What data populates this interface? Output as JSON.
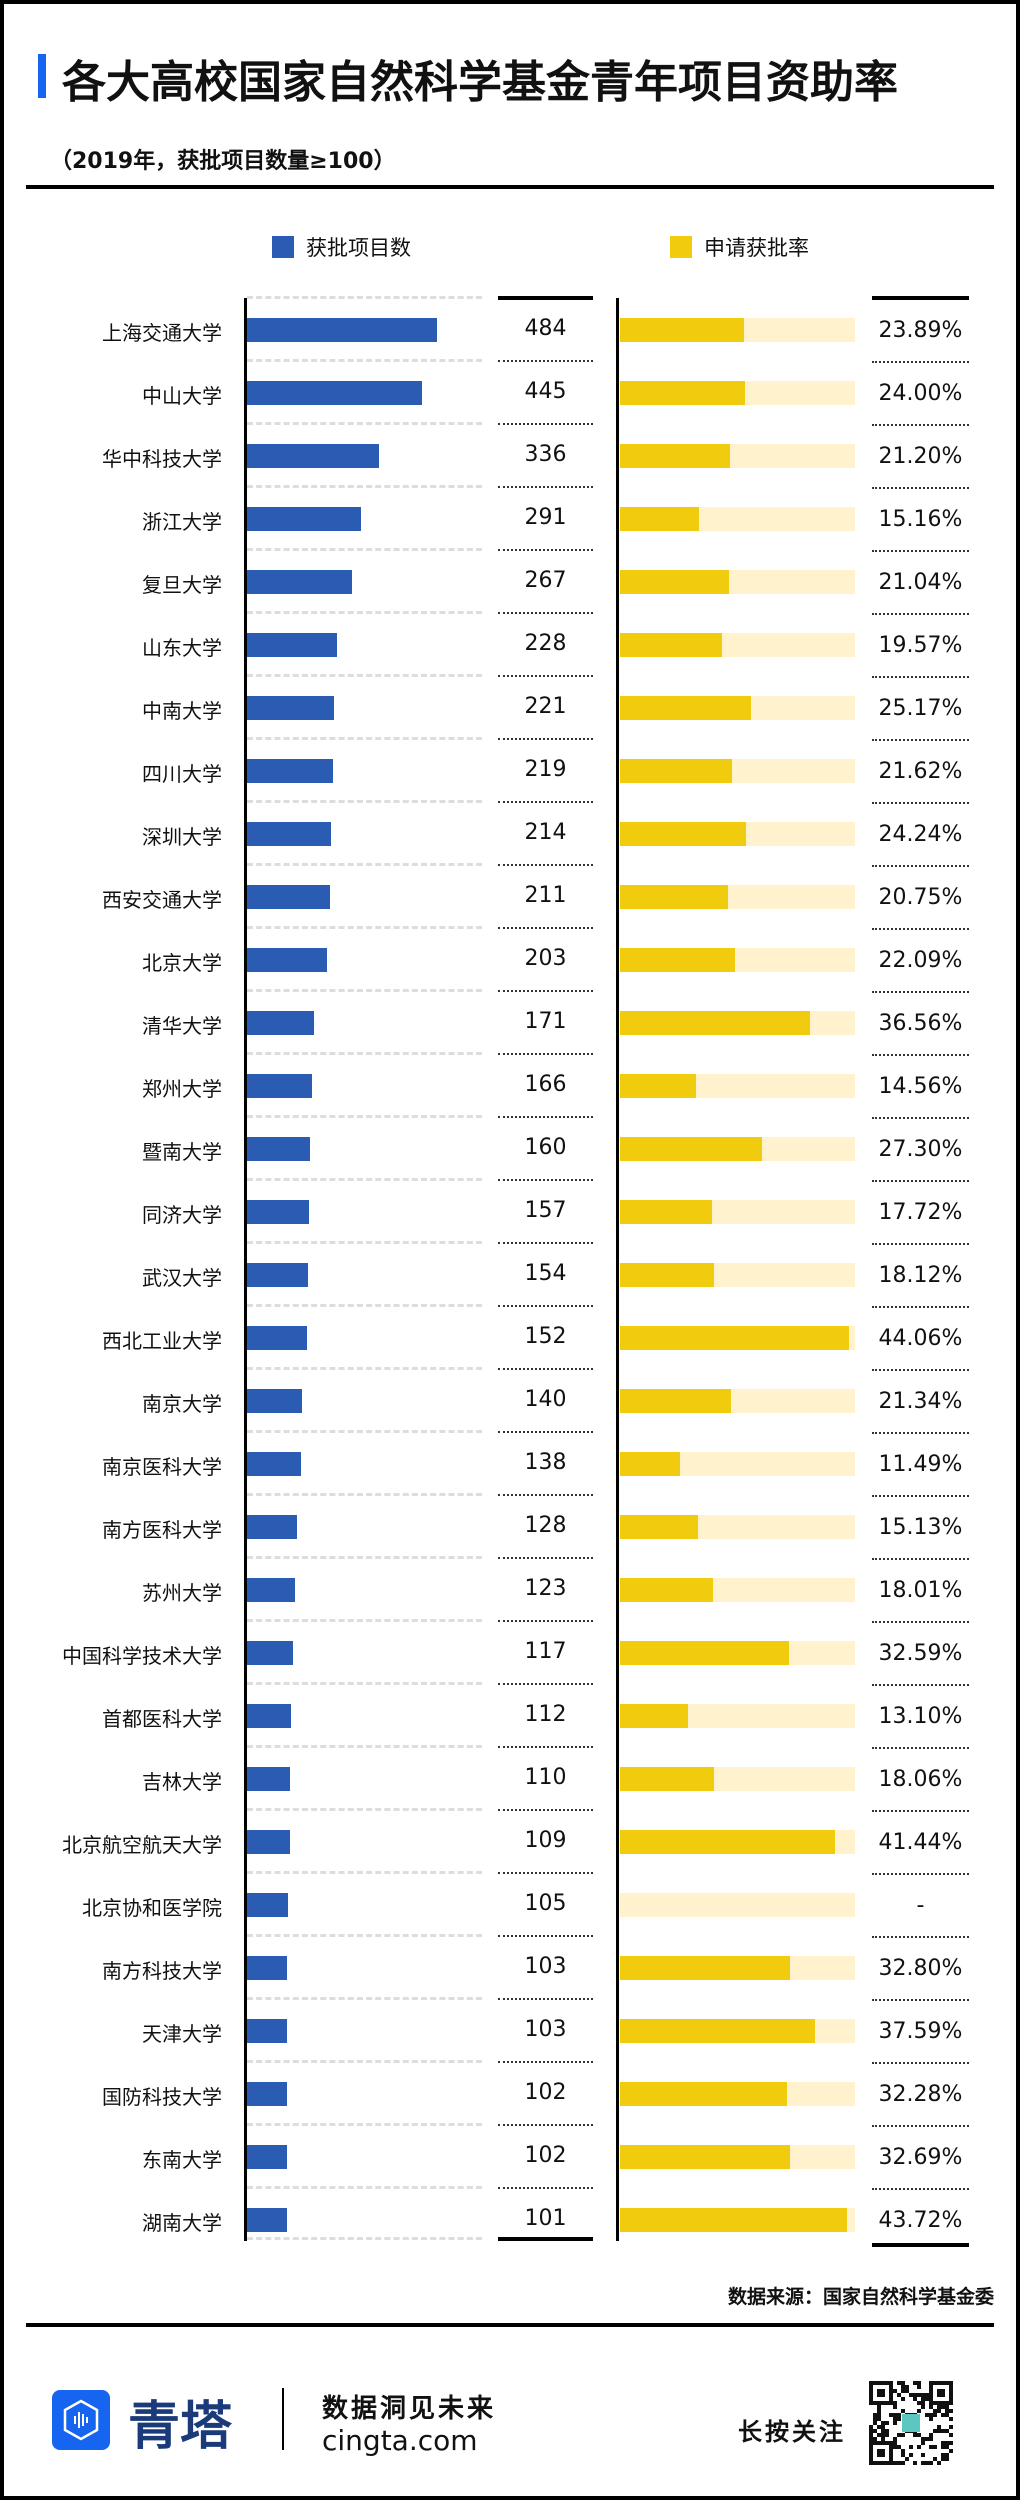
{
  "colors": {
    "blue": "#2a5cb3",
    "yellow": "#f0cb0e",
    "yellow_bg": "#fff2cc",
    "accent": "#1565f0"
  },
  "header": {
    "title": "各大高校国家自然科学基金青年项目资助率",
    "subtitle": "（2019年，获批项目数量≥100）"
  },
  "chart_data": {
    "type": "bar",
    "title": "各大高校国家自然科学基金青年项目资助率",
    "subtitle": "（2019年，获批项目数量≥100）",
    "legend": [
      "获批项目数",
      "申请获批率"
    ],
    "legend_position": "top",
    "categories": [
      "上海交通大学",
      "中山大学",
      "华中科技大学",
      "浙江大学",
      "复旦大学",
      "山东大学",
      "中南大学",
      "四川大学",
      "深圳大学",
      "西安交通大学",
      "北京大学",
      "清华大学",
      "郑州大学",
      "暨南大学",
      "同济大学",
      "武汉大学",
      "西北工业大学",
      "南京大学",
      "南京医科大学",
      "南方医科大学",
      "苏州大学",
      "中国科学技术大学",
      "首都医科大学",
      "吉林大学",
      "北京航空航天大学",
      "北京协和医学院",
      "南方科技大学",
      "天津大学",
      "国防科技大学",
      "东南大学",
      "湖南大学"
    ],
    "series": [
      {
        "name": "获批项目数",
        "values": [
          484,
          445,
          336,
          291,
          267,
          228,
          221,
          219,
          214,
          211,
          203,
          171,
          166,
          160,
          157,
          154,
          152,
          140,
          138,
          128,
          123,
          117,
          112,
          110,
          109,
          105,
          103,
          103,
          102,
          102,
          101
        ]
      },
      {
        "name": "申请获批率",
        "values": [
          23.89,
          24.0,
          21.2,
          15.16,
          21.04,
          19.57,
          25.17,
          21.62,
          24.24,
          20.75,
          22.09,
          36.56,
          14.56,
          27.3,
          17.72,
          18.12,
          44.06,
          21.34,
          11.49,
          15.13,
          18.01,
          32.59,
          13.1,
          18.06,
          41.44,
          null,
          32.8,
          37.59,
          32.28,
          32.69,
          43.72
        ],
        "labels": [
          "23.89%",
          "24.00%",
          "21.20%",
          "15.16%",
          "21.04%",
          "19.57%",
          "25.17%",
          "21.62%",
          "24.24%",
          "20.75%",
          "22.09%",
          "36.56%",
          "14.56%",
          "27.30%",
          "17.72%",
          "18.12%",
          "44.06%",
          "21.34%",
          "11.49%",
          "15.13%",
          "18.01%",
          "32.59%",
          "13.10%",
          "18.06%",
          "41.44%",
          "-",
          "32.80%",
          "37.59%",
          "32.28%",
          "32.69%",
          "43.72%"
        ]
      }
    ],
    "xlim_count": [
      0,
      600
    ],
    "xlim_rate": [
      0,
      45.3
    ]
  },
  "source": "数据来源：国家自然科学基金委",
  "footer": {
    "logo": "青塔",
    "slogan": "数据洞见未来",
    "site": "cingta.com",
    "follow": "长按关注"
  }
}
